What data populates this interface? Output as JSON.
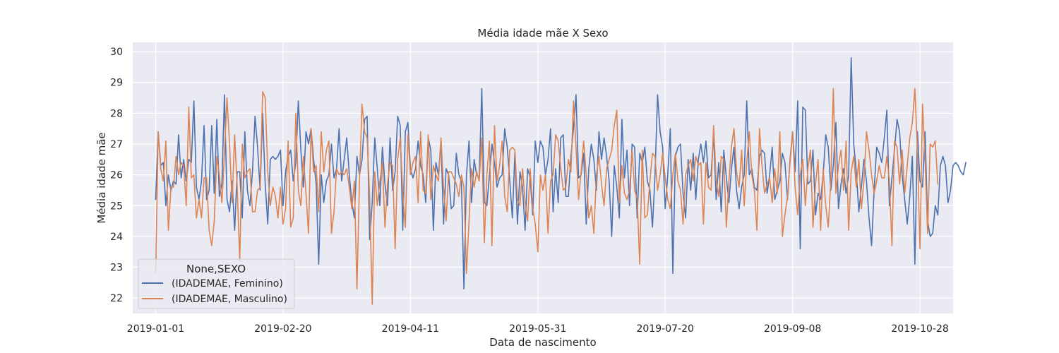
{
  "chart_data": {
    "type": "line",
    "title": "Média idade mãe X Sexo",
    "xlabel": "Data de nascimento",
    "ylabel": "Média idade mãe",
    "x_start": "2019-01-01",
    "x_end": "2019-10-31",
    "xlim": [
      "2018-12-23",
      "2019-11-10"
    ],
    "ylim": [
      21.5,
      30.3
    ],
    "yticks": [
      22,
      23,
      24,
      25,
      26,
      27,
      28,
      29,
      30
    ],
    "xticks": [
      "2019-01-01",
      "2019-02-20",
      "2019-04-11",
      "2019-05-31",
      "2019-07-20",
      "2019-09-08",
      "2019-10-28"
    ],
    "grid": true,
    "legend": {
      "title": "None,SEXO",
      "location": "lower-left"
    },
    "background_color": "#EAEAF2",
    "series": [
      {
        "name": "(IDADEMAE, Feminino)",
        "color": "#4C72B0",
        "values": [
          25.2,
          27.4,
          26.3,
          26.4,
          25.0,
          26.0,
          25.5,
          25.8,
          25.7,
          27.3,
          25.9,
          26.5,
          25.8,
          26.5,
          26.4,
          28.4,
          25.6,
          25.2,
          25.8,
          27.6,
          25.2,
          25.5,
          27.6,
          25.4,
          27.8,
          25.3,
          25.7,
          28.6,
          25.2,
          24.8,
          25.8,
          24.2,
          26.1,
          26.1,
          24.6,
          27.4,
          25.5,
          25.0,
          26.1,
          27.9,
          26.9,
          25.5,
          28.0,
          25.7,
          24.4,
          26.5,
          26.6,
          26.5,
          26.6,
          26.8,
          25.0,
          26.1,
          26.6,
          26.8,
          25.8,
          26.4,
          28.4,
          26.8,
          25.6,
          27.4,
          27.0,
          27.5,
          26.5,
          25.7,
          23.1,
          26.0,
          25.1,
          25.8,
          26.0,
          27.0,
          25.9,
          26.2,
          27.5,
          25.8,
          26.5,
          27.2,
          26.0,
          25.1,
          24.6,
          26.6,
          26.0,
          26.5,
          27.8,
          27.9,
          23.9,
          25.1,
          27.2,
          26.2,
          25.0,
          26.9,
          25.7,
          25.0,
          27.2,
          25.5,
          26.1,
          27.9,
          27.6,
          24.2,
          27.4,
          27.7,
          26.2,
          25.9,
          26.2,
          27.1,
          26.3,
          26.0,
          25.1,
          27.2,
          26.8,
          24.2,
          26.4,
          26.0,
          27.1,
          24.4,
          26.2,
          26.0,
          24.9,
          25.0,
          26.7,
          26.0,
          25.8,
          22.3,
          26.0,
          27.1,
          25.1,
          26.5,
          26.0,
          25.9,
          28.8,
          25.1,
          25.0,
          26.0,
          27.0,
          26.4,
          25.6,
          25.9,
          26.0,
          27.5,
          26.9,
          25.8,
          24.6,
          26.7,
          24.4,
          26.1,
          25.6,
          24.2,
          26.2,
          25.9,
          24.7,
          27.1,
          26.4,
          27.1,
          26.9,
          26.0,
          26.5,
          27.5,
          24.8,
          26.2,
          25.1,
          27.2,
          27.3,
          25.3,
          25.3,
          26.6,
          27.5,
          28.6,
          25.9,
          26.0,
          26.7,
          24.4,
          26.2,
          27.0,
          26.5,
          25.5,
          27.4,
          26.5,
          27.2,
          26.6,
          25.8,
          24.0,
          26.3,
          25.6,
          24.6,
          27.8,
          25.9,
          26.8,
          25.0,
          27.0,
          26.9,
          24.6,
          26.7,
          26.4,
          26.9,
          25.8,
          25.5,
          24.3,
          26.0,
          28.6,
          27.4,
          26.9,
          24.9,
          26.0,
          27.5,
          22.8,
          26.6,
          26.9,
          27.0,
          25.4,
          24.6,
          26.5,
          25.5,
          26.7,
          25.2,
          26.5,
          27.0,
          26.4,
          27.1,
          25.9,
          26.0,
          27.3,
          25.2,
          26.4,
          24.8,
          26.8,
          25.9,
          25.1,
          26.2,
          26.9,
          25.5,
          24.9,
          25.6,
          26.0,
          28.4,
          26.0,
          26.2,
          25.6,
          25.5,
          26.6,
          26.8,
          26.7,
          25.4,
          26.0,
          26.9,
          25.2,
          25.5,
          25.8,
          26.7,
          26.4,
          25.2,
          26.5,
          27.4,
          26.1,
          28.4,
          23.6,
          28.2,
          28.1,
          25.7,
          25.8,
          26.8,
          24.7,
          25.4,
          25.2,
          26.0,
          27.3,
          26.9,
          25.5,
          26.3,
          27.7,
          24.9,
          25.7,
          26.2,
          25.4,
          26.0,
          29.8,
          27.0,
          26.1,
          24.8,
          25.6,
          26.5,
          25.8,
          24.6,
          23.7,
          25.5,
          26.9,
          26.7,
          26.4,
          27.2,
          28.1,
          25.0,
          25.9,
          26.8,
          27.8,
          27.4,
          26.0,
          25.2,
          24.4,
          25.3,
          26.6,
          23.1,
          27.4,
          25.8,
          25.6,
          27.4,
          24.5,
          24.0,
          24.1,
          25.0,
          24.7,
          26.3,
          26.6,
          26.3,
          25.1,
          25.5,
          26.3,
          26.4,
          26.3,
          26.1,
          26.0,
          26.4
        ]
      },
      {
        "name": "(IDADEMAE, Masculino)",
        "color": "#DD8452",
        "values": [
          22.8,
          27.4,
          26.2,
          25.8,
          27.1,
          24.2,
          25.6,
          25.6,
          26.6,
          26.0,
          26.4,
          26.3,
          25.0,
          28.2,
          25.9,
          26.0,
          24.6,
          25.2,
          24.6,
          25.9,
          25.9,
          24.2,
          23.7,
          24.5,
          26.6,
          26.0,
          25.1,
          26.7,
          28.5,
          27.0,
          25.1,
          27.3,
          25.6,
          23.2,
          27.0,
          25.9,
          26.1,
          26.2,
          24.8,
          24.8,
          25.5,
          25.6,
          28.7,
          28.5,
          26.1,
          25.0,
          25.6,
          25.3,
          24.6,
          25.6,
          24.4,
          24.9,
          27.1,
          24.3,
          24.6,
          28.0,
          25.5,
          25.0,
          26.6,
          25.4,
          24.1,
          27.5,
          26.1,
          26.3,
          24.8,
          27.4,
          26.1,
          26.8,
          27.1,
          24.1,
          24.8,
          26.2,
          26.0,
          26.1,
          26.0,
          26.2,
          25.6,
          24.9,
          25.8,
          22.3,
          25.8,
          28.3,
          27.4,
          27.2,
          25.3,
          21.8,
          26.1,
          25.0,
          25.8,
          26.4,
          24.3,
          25.7,
          26.4,
          26.3,
          23.6,
          26.5,
          27.2,
          25.4,
          24.3,
          27.3,
          26.0,
          26.4,
          26.6,
          25.1,
          27.4,
          25.5,
          25.4,
          27.3,
          25.2,
          26.3,
          26.0,
          25.8,
          27.2,
          25.6,
          24.5,
          26.1,
          26.1,
          25.9,
          25.7,
          25.3,
          26.0,
          25.6,
          22.8,
          24.5,
          26.2,
          25.6,
          26.1,
          25.8,
          27.2,
          23.8,
          26.0,
          27.1,
          23.7,
          27.6,
          25.8,
          26.3,
          27.1,
          25.3,
          24.8,
          26.8,
          26.9,
          26.8,
          25.2,
          25.0,
          26.2,
          25.1,
          24.5,
          26.2,
          24.9,
          24.4,
          23.5,
          26.0,
          25.5,
          26.0,
          24.1,
          25.8,
          26.0,
          27.3,
          27.1,
          26.2,
          25.5,
          25.6,
          26.5,
          26.1,
          28.4,
          26.9,
          25.2,
          26.1,
          27.1,
          26.0,
          24.6,
          25.0,
          24.1,
          26.0,
          26.6,
          25.7,
          25.0,
          26.2,
          26.5,
          26.8,
          27.6,
          28.1,
          25.1,
          26.3,
          25.4,
          25.2,
          25.5,
          26.8,
          25.5,
          25.2,
          23.1,
          26.8,
          24.6,
          24.7,
          25.8,
          26.7,
          26.6,
          25.5,
          26.0,
          26.7,
          25.9,
          25.2,
          24.9,
          26.0,
          26.7,
          25.8,
          25.5,
          24.4,
          26.0,
          26.3,
          26.5,
          25.8,
          26.6,
          26.3,
          26.4,
          24.4,
          26.4,
          25.6,
          25.5,
          27.6,
          25.8,
          25.3,
          26.6,
          26.5,
          24.3,
          25.8,
          26.9,
          27.5,
          26.1,
          25.6,
          26.8,
          25.0,
          26.4,
          27.4,
          26.0,
          25.5,
          24.2,
          27.5,
          26.3,
          25.4,
          25.7,
          25.9,
          25.1,
          26.2,
          25.4,
          27.4,
          24.0,
          24.7,
          25.3,
          26.4,
          27.4,
          25.6,
          24.7,
          26.0,
          26.5,
          25.0,
          26.2,
          26.8,
          24.3,
          25.7,
          26.5,
          24.2,
          26.2,
          25.0,
          24.3,
          25.8,
          28.8,
          25.4,
          26.3,
          26.8,
          25.5,
          27.1,
          24.2,
          26.1,
          26.6,
          25.6,
          26.5,
          24.9,
          25.8,
          27.4,
          26.8,
          26.0,
          25.4,
          25.8,
          26.3,
          25.9,
          25.9,
          26.6,
          25.8,
          23.7,
          27.1,
          26.9,
          25.7,
          26.8,
          25.4,
          26.3,
          27.2,
          27.7,
          28.8,
          26.8,
          23.6,
          28.3,
          26.5,
          24.1,
          27.0,
          26.9,
          27.1,
          25.7
        ]
      }
    ]
  }
}
